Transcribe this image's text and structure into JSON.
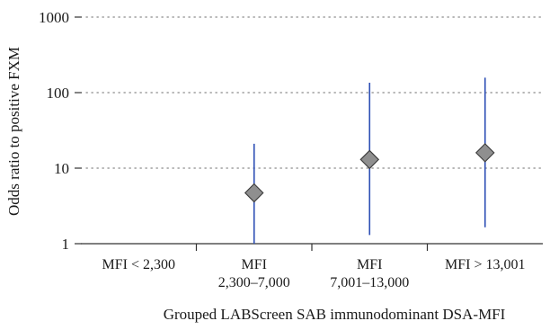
{
  "chart_data": {
    "type": "scatter",
    "subtype": "odds-ratio point estimates with confidence interval bars",
    "title": "",
    "xlabel": "Grouped LABScreen SAB immunodominant DSA-MFI",
    "ylabel": "Odds ratio to positive FXM",
    "yscale": "log",
    "ylim": [
      1,
      1000
    ],
    "yticks": [
      1,
      10,
      100,
      1000
    ],
    "ytick_labels": [
      "1",
      "10",
      "100",
      "1000"
    ],
    "categories": [
      [
        "MFI < 2,300"
      ],
      [
        "MFI",
        "2,300–7,000"
      ],
      [
        "MFI",
        "7,001–13,000"
      ],
      [
        "MFI > 13,001"
      ]
    ],
    "series": [
      {
        "points": [
          {
            "category_index": 1,
            "value": 4.7,
            "ci_low": 1.0,
            "ci_high": 21
          },
          {
            "category_index": 2,
            "value": 13,
            "ci_low": 1.3,
            "ci_high": 135
          },
          {
            "category_index": 3,
            "value": 16,
            "ci_low": 1.65,
            "ci_high": 158
          }
        ]
      }
    ],
    "grid": {
      "horizontal": true,
      "style": "dotted"
    },
    "legend": "none",
    "colors": {
      "ci_bar": "#2e4fb5",
      "marker_fill": "#8f8f8f",
      "marker_stroke": "#3a3a3a",
      "axis": "#333333",
      "grid": "#8a8a8a"
    }
  }
}
